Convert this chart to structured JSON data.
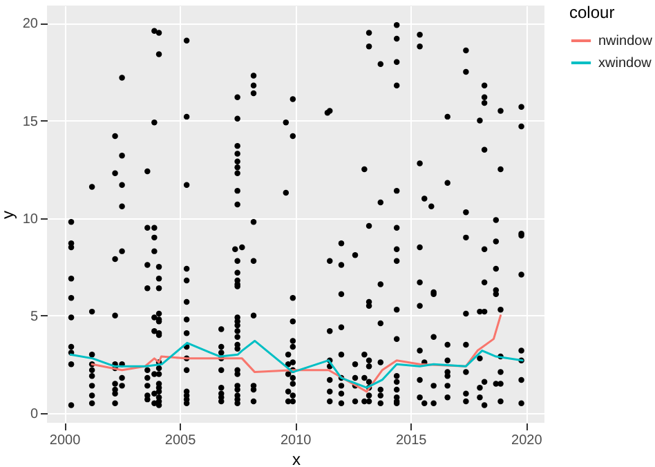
{
  "chart_data": {
    "type": "scatter",
    "xlabel": "x",
    "ylabel": "y",
    "legend_title": "colour",
    "legend": "right",
    "grid": true,
    "xlim": [
      1999.25,
      2020.8
    ],
    "xticks": [
      2000,
      2005,
      2010,
      2015,
      2020
    ],
    "ylim": [
      -0.5,
      20.9
    ],
    "yticks": [
      0,
      5,
      10,
      15,
      20
    ],
    "series": [
      {
        "color": "#000000",
        "x": [
          2000.3,
          2000.3,
          2000.3,
          2000.3,
          2000.3,
          2000.3,
          2000.3,
          2000.3,
          2000.3,
          2000.3,
          2001.2,
          2001.2,
          2001.2,
          2001.2,
          2001.2,
          2001.2,
          2001.2,
          2001.2,
          2001.2,
          2002.2,
          2002.2,
          2002.2,
          2002.2,
          2002.2,
          2002.2,
          2002.2,
          2002.2,
          2002.2,
          2002.2,
          2002.5,
          2002.5,
          2002.5,
          2002.5,
          2002.5,
          2002.5,
          2002.5,
          2002.5,
          2003.6,
          2003.6,
          2003.6,
          2003.6,
          2003.6,
          2003.6,
          2003.6,
          2003.6,
          2003.6,
          2003.9,
          2003.9,
          2003.9,
          2003.9,
          2003.9,
          2003.9,
          2003.9,
          2003.9,
          2003.9,
          2003.9,
          2004.1,
          2004.1,
          2004.1,
          2004.1,
          2004.1,
          2004.1,
          2004.1,
          2004.1,
          2004.1,
          2004.1,
          2004.1,
          2004.1,
          2004.1,
          2004.1,
          2004.1,
          2004.1,
          2004.1,
          2004.1,
          2004.1,
          2005.3,
          2005.3,
          2005.3,
          2005.3,
          2005.3,
          2005.3,
          2005.3,
          2005.3,
          2005.3,
          2005.3,
          2005.3,
          2005.3,
          2005.3,
          2005.3,
          2005.3,
          2006.8,
          2006.8,
          2006.8,
          2006.8,
          2006.8,
          2006.8,
          2006.8,
          2006.8,
          2006.8,
          2007.5,
          2007.5,
          2007.5,
          2007.5,
          2007.5,
          2007.5,
          2007.5,
          2007.5,
          2007.5,
          2007.4,
          2007.7,
          2007.5,
          2007.5,
          2007.5,
          2007.5,
          2007.5,
          2007.5,
          2007.5,
          2007.5,
          2007.5,
          2007.5,
          2007.5,
          2007.5,
          2007.5,
          2007.5,
          2007.5,
          2007.5,
          2007.5,
          2007.5,
          2007.5,
          2008.2,
          2008.2,
          2008.2,
          2008.2,
          2008.2,
          2008.2,
          2008.2,
          2008.2,
          2008.2,
          2009.6,
          2009.6,
          2009.7,
          2009.7,
          2009.7,
          2009.7,
          2009.7,
          2009.9,
          2009.9,
          2009.9,
          2009.9,
          2009.9,
          2009.9,
          2009.9,
          2009.9,
          2009.9,
          2009.9,
          2009.9,
          2009.9,
          2011.5,
          2011.4,
          2011.5,
          2011.5,
          2011.5,
          2011.5,
          2011.5,
          2011.5,
          2011.5,
          2012.0,
          2012.0,
          2012.0,
          2012.0,
          2012.0,
          2012.0,
          2012.0,
          2012.0,
          2012.0,
          2012.6,
          2012.6,
          2012.6,
          2012.6,
          2012.6,
          2013.0,
          2013.0,
          2013.0,
          2013.0,
          2013.2,
          2013.2,
          2013.2,
          2013.2,
          2013.2,
          2013.2,
          2013.2,
          2013.2,
          2013.2,
          2013.2,
          2013.2,
          2013.7,
          2013.7,
          2013.7,
          2013.7,
          2013.7,
          2013.7,
          2013.7,
          2013.7,
          2014.4,
          2014.4,
          2014.4,
          2014.4,
          2014.4,
          2014.4,
          2014.4,
          2014.4,
          2014.4,
          2014.4,
          2014.4,
          2014.4,
          2014.4,
          2014.4,
          2014.4,
          2014.4,
          2015.4,
          2015.4,
          2015.4,
          2015.4,
          2015.4,
          2015.4,
          2015.4,
          2015.4,
          2015.4,
          2015.6,
          2015.9,
          2015.6,
          2015.6,
          2016.0,
          2016.0,
          2016.0,
          2016.0,
          2016.0,
          2016.6,
          2016.6,
          2016.6,
          2016.6,
          2016.6,
          2016.6,
          2016.6,
          2016.6,
          2017.4,
          2017.4,
          2017.4,
          2017.4,
          2017.4,
          2017.4,
          2017.4,
          2017.4,
          2017.4,
          2018.0,
          2018.0,
          2018.0,
          2018.0,
          2018.0,
          2018.2,
          2018.2,
          2018.2,
          2018.2,
          2018.2,
          2018.2,
          2018.2,
          2018.2,
          2018.2,
          2018.7,
          2018.7,
          2018.7,
          2018.7,
          2018.7,
          2018.7,
          2018.9,
          2018.9,
          2018.9,
          2018.9,
          2018.9,
          2018.9,
          2018.9,
          2019.8,
          2019.8,
          2019.8,
          2019.8,
          2019.8,
          2019.8,
          2019.8,
          2019.8,
          2019.8
        ],
        "values": [
          9.8,
          8.7,
          8.5,
          6.9,
          5.9,
          4.9,
          3.4,
          3.1,
          2.5,
          0.4,
          11.6,
          5.2,
          3.0,
          2.5,
          2.2,
          1.9,
          1.4,
          0.9,
          0.5,
          14.2,
          12.3,
          7.9,
          5.0,
          2.5,
          2.3,
          1.5,
          1.2,
          1.0,
          0.5,
          17.2,
          13.2,
          11.7,
          10.6,
          8.3,
          2.5,
          1.8,
          1.4,
          12.4,
          9.5,
          7.6,
          6.4,
          2.2,
          1.8,
          1.4,
          0.9,
          0.7,
          19.6,
          14.9,
          9.5,
          9.0,
          8.3,
          4.9,
          4.2,
          2.0,
          1.0,
          0.5,
          19.5,
          18.4,
          7.5,
          6.9,
          6.4,
          5.1,
          4.8,
          4.7,
          4.1,
          4.0,
          2.6,
          2.3,
          2.0,
          1.5,
          1.3,
          1.1,
          0.8,
          0.6,
          0.4,
          19.1,
          15.2,
          11.7,
          7.4,
          6.8,
          5.7,
          4.8,
          4.1,
          3.4,
          2.8,
          2.2,
          1.1,
          0.9,
          0.7,
          0.5,
          4.3,
          3.4,
          3.1,
          2.8,
          2.2,
          1.3,
          1.0,
          0.8,
          0.6,
          16.2,
          15.1,
          13.7,
          13.3,
          12.9,
          12.6,
          12.3,
          11.4,
          10.7,
          8.4,
          8.5,
          7.8,
          7.2,
          6.8,
          6.6,
          6.5,
          4.9,
          4.7,
          4.5,
          4.2,
          3.9,
          3.5,
          3.3,
          2.2,
          2.0,
          1.4,
          1.2,
          0.9,
          0.7,
          0.5,
          17.3,
          16.8,
          16.4,
          9.8,
          7.8,
          5.0,
          1.4,
          1.2,
          0.6,
          14.9,
          11.3,
          3.0,
          2.5,
          2.0,
          1.1,
          0.6,
          16.1,
          14.2,
          5.9,
          4.7,
          3.7,
          3.4,
          2.6,
          2.2,
          1.8,
          1.5,
          0.9,
          0.6,
          15.5,
          15.4,
          7.8,
          4.2,
          2.7,
          2.4,
          1.7,
          1.1,
          0.6,
          8.7,
          7.6,
          6.1,
          4.4,
          3.0,
          1.8,
          1.4,
          1.0,
          0.5,
          8.1,
          2.5,
          1.8,
          1.4,
          0.6,
          12.5,
          3.0,
          1.8,
          0.6,
          19.5,
          18.8,
          9.6,
          5.7,
          5.5,
          2.7,
          2.4,
          1.6,
          1.3,
          0.9,
          0.6,
          17.9,
          10.8,
          6.6,
          4.6,
          2.6,
          1.2,
          0.9,
          0.5,
          19.9,
          19.2,
          18.0,
          16.8,
          11.4,
          9.5,
          8.4,
          7.8,
          5.3,
          3.8,
          1.9,
          1.6,
          1.2,
          0.8,
          0.6,
          0.5,
          19.4,
          18.8,
          12.8,
          8.5,
          6.7,
          5.5,
          3.2,
          1.7,
          0.8,
          11.0,
          10.6,
          2.6,
          0.5,
          6.2,
          6.1,
          3.9,
          1.4,
          0.5,
          15.2,
          11.8,
          3.5,
          2.7,
          2.1,
          1.9,
          1.4,
          0.8,
          18.6,
          17.5,
          10.3,
          9.0,
          5.1,
          3.5,
          2.1,
          1.0,
          0.6,
          15.0,
          5.2,
          2.8,
          1.3,
          0.8,
          16.8,
          16.2,
          15.9,
          13.5,
          8.4,
          6.7,
          5.2,
          1.6,
          0.4,
          9.9,
          8.8,
          7.4,
          6.3,
          6.1,
          1.5,
          15.5,
          12.5,
          5.3,
          2.9,
          2.1,
          1.5,
          0.6,
          15.7,
          14.7,
          9.2,
          9.1,
          7.1,
          3.2,
          2.7,
          1.7,
          0.5
        ]
      },
      {
        "type": "line",
        "name": "nwindow",
        "color": "#f8766d",
        "x": [
          2001.2,
          2002.5,
          2003.5,
          2003.9,
          2004.1,
          2004.2,
          2005.3,
          2007.7,
          2008.25,
          2009.9,
          2011.45,
          2013.1,
          2013.77,
          2014.4,
          2015.4,
          2017.4,
          2017.9,
          2018.6,
          2018.9
        ],
        "values": [
          2.5,
          2.2,
          2.4,
          2.8,
          2.6,
          2.9,
          2.8,
          2.8,
          2.1,
          2.2,
          2.2,
          1.1,
          2.2,
          2.7,
          2.5,
          2.4,
          3.2,
          3.8,
          5.0
        ]
      },
      {
        "type": "line",
        "name": "xwindow",
        "color": "#00bfc4",
        "x": [
          2000.27,
          2001.23,
          2002.17,
          2003.52,
          2004.22,
          2005.32,
          2006.32,
          2006.75,
          2007.52,
          2007.7,
          2008.25,
          2009.9,
          2011.45,
          2012.0,
          2013.1,
          2013.77,
          2014.4,
          2015.4,
          2016.0,
          2017.4,
          2018.1,
          2018.7,
          2019.85
        ],
        "values": [
          3.0,
          2.8,
          2.4,
          2.4,
          2.5,
          3.6,
          3.1,
          2.9,
          3.0,
          3.2,
          3.7,
          2.1,
          2.7,
          1.8,
          1.3,
          1.7,
          2.5,
          2.4,
          2.5,
          2.4,
          3.2,
          2.9,
          2.7
        ]
      }
    ]
  }
}
